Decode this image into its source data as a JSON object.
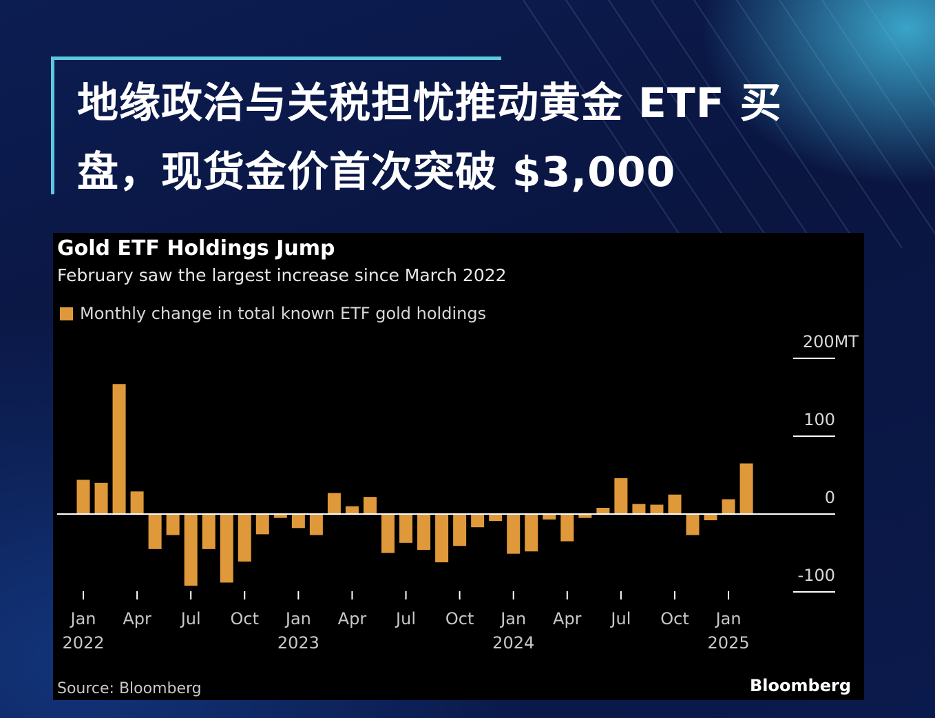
{
  "headline": "地缘政治与关税担忧推动黄金 ETF 买盘，现货金价首次突破 $3,000",
  "colors": {
    "accent": "#5ec8e0",
    "bar": "#e0993a",
    "panel": "#000000",
    "background": "#0a1540"
  },
  "chart_data": {
    "type": "bar",
    "title": "Gold ETF Holdings Jump",
    "subtitle": "February saw the largest increase since March 2022",
    "series": [
      {
        "name": "Monthly change in total known ETF gold holdings",
        "color": "#e0993a",
        "x": [
          "2022-01",
          "2022-02",
          "2022-03",
          "2022-04",
          "2022-05",
          "2022-06",
          "2022-07",
          "2022-08",
          "2022-09",
          "2022-10",
          "2022-11",
          "2022-12",
          "2023-01",
          "2023-02",
          "2023-03",
          "2023-04",
          "2023-05",
          "2023-06",
          "2023-07",
          "2023-08",
          "2023-09",
          "2023-10",
          "2023-11",
          "2023-12",
          "2024-01",
          "2024-02",
          "2024-03",
          "2024-04",
          "2024-05",
          "2024-06",
          "2024-07",
          "2024-08",
          "2024-09",
          "2024-10",
          "2024-11",
          "2024-12",
          "2025-01",
          "2025-02"
        ],
        "values": [
          44,
          40,
          167,
          29,
          -45,
          -27,
          -92,
          -45,
          -88,
          -61,
          -26,
          -5,
          -18,
          -27,
          27,
          10,
          22,
          -50,
          -37,
          -46,
          -62,
          -41,
          -17,
          -9,
          -51,
          -48,
          -7,
          -35,
          -5,
          8,
          46,
          13,
          12,
          25,
          -27,
          -8,
          19,
          65
        ]
      }
    ],
    "x_tick_labels": [
      {
        "month": "Jan",
        "year": "2022"
      },
      {
        "month": "Apr",
        "year": ""
      },
      {
        "month": "Jul",
        "year": ""
      },
      {
        "month": "Oct",
        "year": ""
      },
      {
        "month": "Jan",
        "year": "2023"
      },
      {
        "month": "Apr",
        "year": ""
      },
      {
        "month": "Jul",
        "year": ""
      },
      {
        "month": "Oct",
        "year": ""
      },
      {
        "month": "Jan",
        "year": "2024"
      },
      {
        "month": "Apr",
        "year": ""
      },
      {
        "month": "Jul",
        "year": ""
      },
      {
        "month": "Oct",
        "year": ""
      },
      {
        "month": "Jan",
        "year": "2025"
      }
    ],
    "y_ticks": [
      {
        "value": 200,
        "label": "200MT"
      },
      {
        "value": 100,
        "label": "100"
      },
      {
        "value": 0,
        "label": "0"
      },
      {
        "value": -100,
        "label": "-100"
      }
    ],
    "ylim": [
      -100,
      200
    ],
    "y_axis_side": "right",
    "grid": false,
    "legend_position": "top-left",
    "source": "Source: Bloomberg",
    "brand": "Bloomberg"
  }
}
